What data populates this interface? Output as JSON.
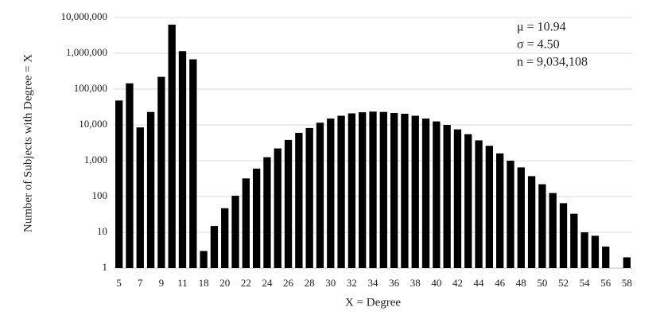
{
  "chart_data": {
    "type": "bar",
    "x_label": "X = Degree",
    "y_label": "Number of Subjects with Degree = X",
    "annotations": [
      "μ = 10.94",
      "σ = 4.50",
      "n = 9,034,108"
    ],
    "categories": [
      "5",
      null,
      "7",
      null,
      "9",
      null,
      "11",
      null,
      "18",
      null,
      "20",
      null,
      "22",
      null,
      "24",
      null,
      "26",
      null,
      "28",
      null,
      "30",
      null,
      "32",
      null,
      "34",
      null,
      "36",
      null,
      "38",
      null,
      "40",
      null,
      "42",
      null,
      "44",
      null,
      "46",
      null,
      "48",
      null,
      "50",
      null,
      "52",
      null,
      "54",
      null,
      "56",
      null,
      "58"
    ],
    "values": [
      48000,
      145000,
      8500,
      23000,
      220000,
      6300000,
      1150000,
      680000,
      3,
      15,
      47,
      105,
      320,
      600,
      1250,
      2200,
      3800,
      6000,
      8200,
      11500,
      15000,
      18000,
      21000,
      22500,
      23500,
      23000,
      21500,
      20500,
      18000,
      15000,
      12500,
      10000,
      7500,
      5500,
      3700,
      2600,
      1600,
      1000,
      650,
      370,
      220,
      125,
      65,
      33,
      10,
      8,
      4,
      null,
      2
    ],
    "color": "#000000",
    "log_scale": true,
    "grid": true,
    "ylim": [
      1,
      10000000
    ],
    "yticks": [
      1,
      10,
      100,
      {
        "value": 1000,
        "label": "1,000"
      },
      {
        "value": 10000,
        "label": "10,000"
      },
      {
        "value": 100000,
        "label": "100,000"
      },
      {
        "value": 1000000,
        "label": "1,000,000"
      },
      {
        "value": 10000000,
        "label": "10,000,000"
      }
    ]
  }
}
